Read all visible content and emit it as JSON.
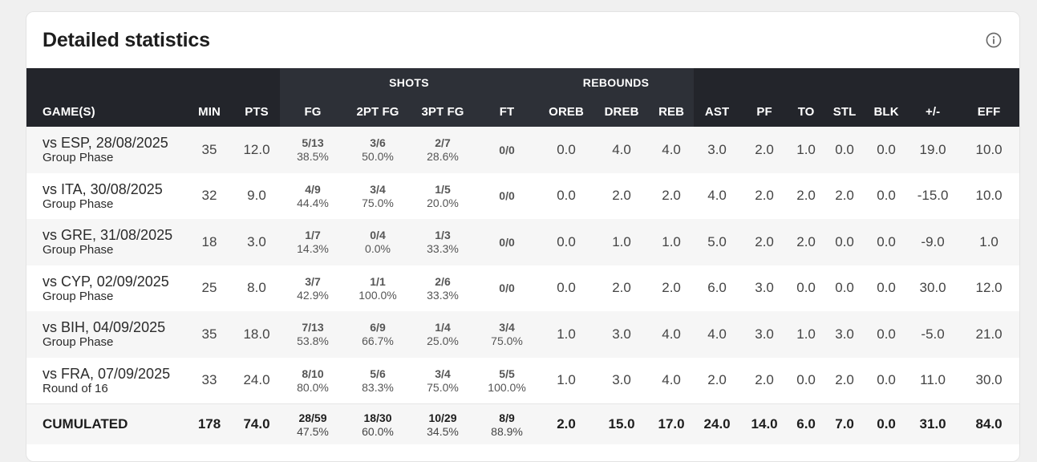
{
  "title": "Detailed statistics",
  "icons": {
    "info": "info-icon"
  },
  "colors": {
    "header_bg": "#23252b",
    "header_group_bg": "#2d3037",
    "row_alt": "#f6f6f6"
  },
  "groups": {
    "shots": "SHOTS",
    "rebounds": "REBOUNDS"
  },
  "columns": {
    "game": "GAME(S)",
    "min": "MIN",
    "pts": "PTS",
    "fg": "FG",
    "fg2": "2PT FG",
    "fg3": "3PT FG",
    "ft": "FT",
    "oreb": "OREB",
    "dreb": "DREB",
    "reb": "REB",
    "ast": "AST",
    "pf": "PF",
    "to": "TO",
    "stl": "STL",
    "blk": "BLK",
    "pm": "+/-",
    "eff": "EFF"
  },
  "rows": [
    {
      "game": "vs ESP, 28/08/2025",
      "phase": "Group Phase",
      "min": "35",
      "pts": "12.0",
      "fg": "5/13",
      "fg_pct": "38.5%",
      "fg2": "3/6",
      "fg2_pct": "50.0%",
      "fg3": "2/7",
      "fg3_pct": "28.6%",
      "ft": "0/0",
      "ft_pct": "",
      "oreb": "0.0",
      "dreb": "4.0",
      "reb": "4.0",
      "ast": "3.0",
      "pf": "2.0",
      "to": "1.0",
      "stl": "0.0",
      "blk": "0.0",
      "pm": "19.0",
      "eff": "10.0"
    },
    {
      "game": "vs ITA, 30/08/2025",
      "phase": "Group Phase",
      "min": "32",
      "pts": "9.0",
      "fg": "4/9",
      "fg_pct": "44.4%",
      "fg2": "3/4",
      "fg2_pct": "75.0%",
      "fg3": "1/5",
      "fg3_pct": "20.0%",
      "ft": "0/0",
      "ft_pct": "",
      "oreb": "0.0",
      "dreb": "2.0",
      "reb": "2.0",
      "ast": "4.0",
      "pf": "2.0",
      "to": "2.0",
      "stl": "2.0",
      "blk": "0.0",
      "pm": "-15.0",
      "eff": "10.0"
    },
    {
      "game": "vs GRE, 31/08/2025",
      "phase": "Group Phase",
      "min": "18",
      "pts": "3.0",
      "fg": "1/7",
      "fg_pct": "14.3%",
      "fg2": "0/4",
      "fg2_pct": "0.0%",
      "fg3": "1/3",
      "fg3_pct": "33.3%",
      "ft": "0/0",
      "ft_pct": "",
      "oreb": "0.0",
      "dreb": "1.0",
      "reb": "1.0",
      "ast": "5.0",
      "pf": "2.0",
      "to": "2.0",
      "stl": "0.0",
      "blk": "0.0",
      "pm": "-9.0",
      "eff": "1.0"
    },
    {
      "game": "vs CYP, 02/09/2025",
      "phase": "Group Phase",
      "min": "25",
      "pts": "8.0",
      "fg": "3/7",
      "fg_pct": "42.9%",
      "fg2": "1/1",
      "fg2_pct": "100.0%",
      "fg3": "2/6",
      "fg3_pct": "33.3%",
      "ft": "0/0",
      "ft_pct": "",
      "oreb": "0.0",
      "dreb": "2.0",
      "reb": "2.0",
      "ast": "6.0",
      "pf": "3.0",
      "to": "0.0",
      "stl": "0.0",
      "blk": "0.0",
      "pm": "30.0",
      "eff": "12.0"
    },
    {
      "game": "vs BIH, 04/09/2025",
      "phase": "Group Phase",
      "min": "35",
      "pts": "18.0",
      "fg": "7/13",
      "fg_pct": "53.8%",
      "fg2": "6/9",
      "fg2_pct": "66.7%",
      "fg3": "1/4",
      "fg3_pct": "25.0%",
      "ft": "3/4",
      "ft_pct": "75.0%",
      "oreb": "1.0",
      "dreb": "3.0",
      "reb": "4.0",
      "ast": "4.0",
      "pf": "3.0",
      "to": "1.0",
      "stl": "3.0",
      "blk": "0.0",
      "pm": "-5.0",
      "eff": "21.0"
    },
    {
      "game": "vs FRA, 07/09/2025",
      "phase": "Round of 16",
      "min": "33",
      "pts": "24.0",
      "fg": "8/10",
      "fg_pct": "80.0%",
      "fg2": "5/6",
      "fg2_pct": "83.3%",
      "fg3": "3/4",
      "fg3_pct": "75.0%",
      "ft": "5/5",
      "ft_pct": "100.0%",
      "oreb": "1.0",
      "dreb": "3.0",
      "reb": "4.0",
      "ast": "2.0",
      "pf": "2.0",
      "to": "0.0",
      "stl": "2.0",
      "blk": "0.0",
      "pm": "11.0",
      "eff": "30.0"
    }
  ],
  "total": {
    "label": "CUMULATED",
    "min": "178",
    "pts": "74.0",
    "fg": "28/59",
    "fg_pct": "47.5%",
    "fg2": "18/30",
    "fg2_pct": "60.0%",
    "fg3": "10/29",
    "fg3_pct": "34.5%",
    "ft": "8/9",
    "ft_pct": "88.9%",
    "oreb": "2.0",
    "dreb": "15.0",
    "reb": "17.0",
    "ast": "24.0",
    "pf": "14.0",
    "to": "6.0",
    "stl": "7.0",
    "blk": "0.0",
    "pm": "31.0",
    "eff": "84.0"
  }
}
